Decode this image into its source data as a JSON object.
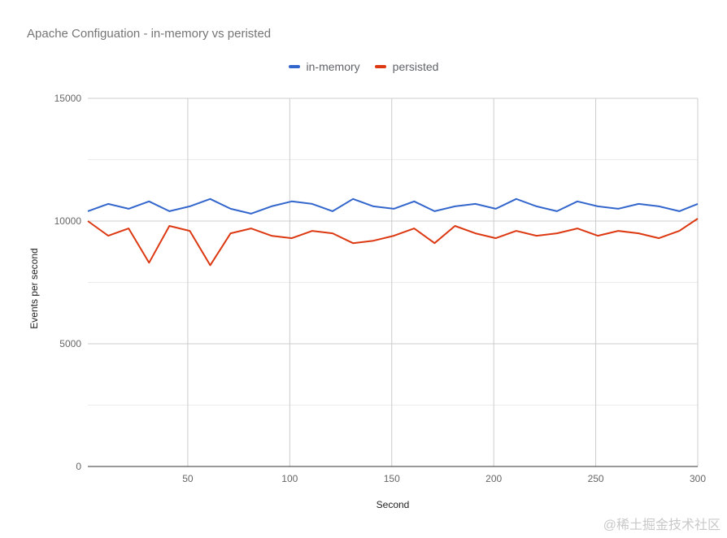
{
  "chart_data": {
    "type": "line",
    "title": "Apache Configuation - in-memory vs peristed",
    "xlabel": "Second",
    "ylabel": "Events per second",
    "xlim": [
      1,
      300
    ],
    "ylim": [
      0,
      15000
    ],
    "x_ticks": [
      50,
      100,
      150,
      200,
      250,
      300
    ],
    "y_ticks": [
      0,
      5000,
      10000,
      15000
    ],
    "grid": true,
    "legend_position": "top",
    "series": [
      {
        "name": "in-memory",
        "color": "#3366cc",
        "x_step": 10,
        "values": [
          10400,
          10700,
          10500,
          10800,
          10400,
          10600,
          10900,
          10500,
          10300,
          10600,
          10800,
          10700,
          10400,
          10900,
          10600,
          10500,
          10800,
          10400,
          10600,
          10700,
          10500,
          10900,
          10600,
          10400,
          10800,
          10600,
          10500,
          10700,
          10600,
          10400,
          10700
        ]
      },
      {
        "name": "persisted",
        "color": "#dc3912",
        "x_step": 10,
        "values": [
          10000,
          9400,
          9700,
          8300,
          9800,
          9600,
          8200,
          9500,
          9700,
          9400,
          9300,
          9600,
          9500,
          9100,
          9200,
          9400,
          9700,
          9100,
          9800,
          9500,
          9300,
          9600,
          9400,
          9500,
          9700,
          9400,
          9600,
          9500,
          9300,
          9600,
          10100
        ]
      }
    ]
  },
  "watermark": "@稀土掘金技术社区"
}
